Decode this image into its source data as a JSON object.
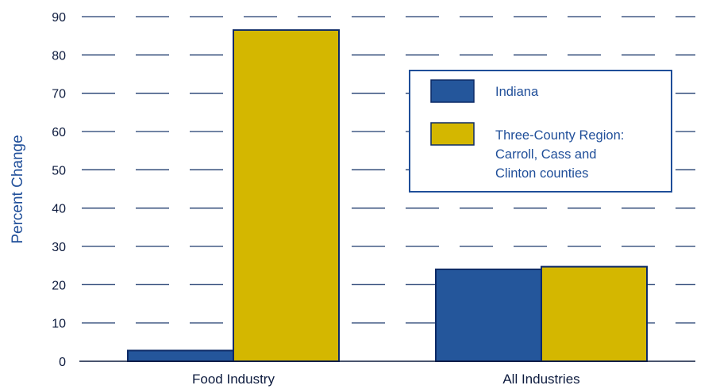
{
  "chart_data": {
    "type": "bar",
    "title": "",
    "xlabel": "",
    "ylabel": "Percent Change",
    "categories": [
      "Food Industry",
      "All Industries"
    ],
    "series": [
      {
        "name": "Indiana",
        "values": [
          2.8,
          24.0
        ]
      },
      {
        "name_lines": [
          "Three-County Region:",
          "Carroll, Cass and",
          "Clinton counties"
        ],
        "name": "Three-County Region: Carroll, Cass and Clinton counties",
        "values": [
          86.5,
          24.7
        ]
      }
    ],
    "ylim": [
      0,
      90
    ],
    "yticks": [
      0,
      10,
      20,
      30,
      40,
      50,
      60,
      70,
      80,
      90
    ],
    "grid": "dashed horizontal",
    "legend_position": "top-right",
    "colors": {
      "series": [
        "#24569b",
        "#d4b700"
      ],
      "grid": "#1f3b6e",
      "bar_edge": "#0d2a66",
      "legend_border": "#1f4e99",
      "label_text": "#1f4e99"
    }
  }
}
